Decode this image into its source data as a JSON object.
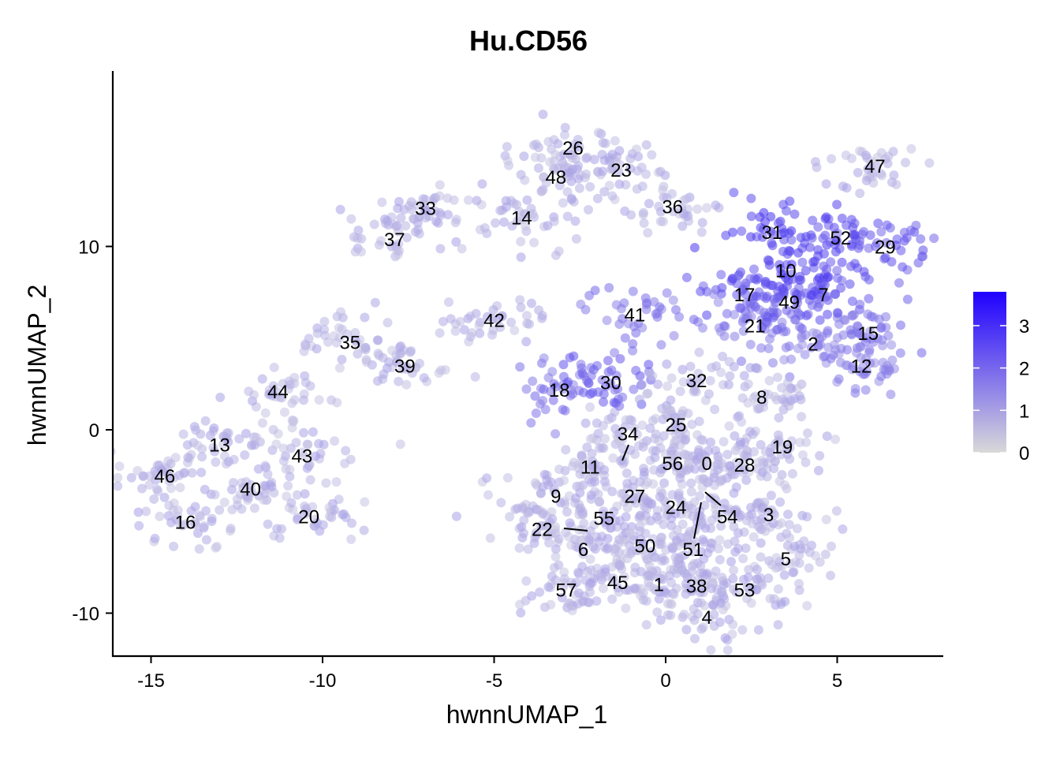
{
  "chart_data": {
    "type": "scatter",
    "title": "Hu.CD56",
    "xlabel": "hwnnUMAP_1",
    "ylabel": "hwnnUMAP_2",
    "xlim": [
      -16,
      8
    ],
    "ylim": [
      -12.5,
      19.5
    ],
    "x_ticks": [
      -15,
      -10,
      -5,
      0,
      5
    ],
    "y_ticks": [
      -10,
      0,
      10
    ],
    "grid": false,
    "colors": {
      "low": "#d9d9d9",
      "high": "#1f00ff",
      "point_base": "#c8c5e2"
    },
    "legend": {
      "position": "right",
      "type": "colorbar",
      "range": [
        0,
        3.8
      ],
      "ticks": [
        0,
        1,
        2,
        3
      ]
    },
    "clusters": [
      {
        "label": "0",
        "x": 1.2,
        "y": -1.8
      },
      {
        "label": "1",
        "x": -0.2,
        "y": -8.4
      },
      {
        "label": "2",
        "x": 4.3,
        "y": 4.7
      },
      {
        "label": "3",
        "x": 3.0,
        "y": -4.6
      },
      {
        "label": "4",
        "x": 1.2,
        "y": -10.2
      },
      {
        "label": "5",
        "x": 3.5,
        "y": -7.0
      },
      {
        "label": "6",
        "x": -2.4,
        "y": -6.5
      },
      {
        "label": "7",
        "x": 4.6,
        "y": 7.4
      },
      {
        "label": "8",
        "x": 2.8,
        "y": 1.8
      },
      {
        "label": "9",
        "x": -3.2,
        "y": -3.6
      },
      {
        "label": "10",
        "x": 3.5,
        "y": 8.7
      },
      {
        "label": "11",
        "x": -2.2,
        "y": -2.0
      },
      {
        "label": "12",
        "x": 5.7,
        "y": 3.5
      },
      {
        "label": "13",
        "x": -13.0,
        "y": -0.8
      },
      {
        "label": "14",
        "x": -4.2,
        "y": 11.6
      },
      {
        "label": "15",
        "x": 5.9,
        "y": 5.3
      },
      {
        "label": "16",
        "x": -14.0,
        "y": -5.0
      },
      {
        "label": "17",
        "x": 2.3,
        "y": 7.4
      },
      {
        "label": "18",
        "x": -3.1,
        "y": 2.2
      },
      {
        "label": "19",
        "x": 3.4,
        "y": -0.9
      },
      {
        "label": "20",
        "x": -10.4,
        "y": -4.7
      },
      {
        "label": "21",
        "x": 2.6,
        "y": 5.7
      },
      {
        "label": "22",
        "x": -3.6,
        "y": -5.4
      },
      {
        "label": "23",
        "x": -1.3,
        "y": 14.2
      },
      {
        "label": "24",
        "x": 0.3,
        "y": -4.2
      },
      {
        "label": "25",
        "x": 0.3,
        "y": 0.3
      },
      {
        "label": "26",
        "x": -2.7,
        "y": 15.4
      },
      {
        "label": "27",
        "x": -0.9,
        "y": -3.6
      },
      {
        "label": "28",
        "x": 2.3,
        "y": -1.9
      },
      {
        "label": "29",
        "x": 6.4,
        "y": 10.0
      },
      {
        "label": "30",
        "x": -1.6,
        "y": 2.6
      },
      {
        "label": "31",
        "x": 3.1,
        "y": 10.8
      },
      {
        "label": "32",
        "x": 0.9,
        "y": 2.7
      },
      {
        "label": "33",
        "x": -7.0,
        "y": 12.1
      },
      {
        "label": "34",
        "x": -1.1,
        "y": -0.2
      },
      {
        "label": "35",
        "x": -9.2,
        "y": 4.8
      },
      {
        "label": "36",
        "x": 0.2,
        "y": 12.2
      },
      {
        "label": "37",
        "x": -7.9,
        "y": 10.4
      },
      {
        "label": "38",
        "x": 0.9,
        "y": -8.5
      },
      {
        "label": "39",
        "x": -7.6,
        "y": 3.5
      },
      {
        "label": "40",
        "x": -12.1,
        "y": -3.2
      },
      {
        "label": "41",
        "x": -0.9,
        "y": 6.3
      },
      {
        "label": "42",
        "x": -5.0,
        "y": 6.0
      },
      {
        "label": "43",
        "x": -10.6,
        "y": -1.4
      },
      {
        "label": "44",
        "x": -11.3,
        "y": 2.1
      },
      {
        "label": "45",
        "x": -1.4,
        "y": -8.3
      },
      {
        "label": "46",
        "x": -14.6,
        "y": -2.5
      },
      {
        "label": "47",
        "x": 6.1,
        "y": 14.4
      },
      {
        "label": "48",
        "x": -3.2,
        "y": 13.8
      },
      {
        "label": "49",
        "x": 3.6,
        "y": 7.0
      },
      {
        "label": "50",
        "x": -0.6,
        "y": -6.3
      },
      {
        "label": "51",
        "x": 0.8,
        "y": -6.5
      },
      {
        "label": "52",
        "x": 5.1,
        "y": 10.5
      },
      {
        "label": "53",
        "x": 2.3,
        "y": -8.7
      },
      {
        "label": "54",
        "x": 1.8,
        "y": -4.7
      },
      {
        "label": "55",
        "x": -1.8,
        "y": -4.8
      },
      {
        "label": "56",
        "x": 0.2,
        "y": -1.8
      },
      {
        "label": "57",
        "x": -2.9,
        "y": -8.7
      }
    ]
  }
}
